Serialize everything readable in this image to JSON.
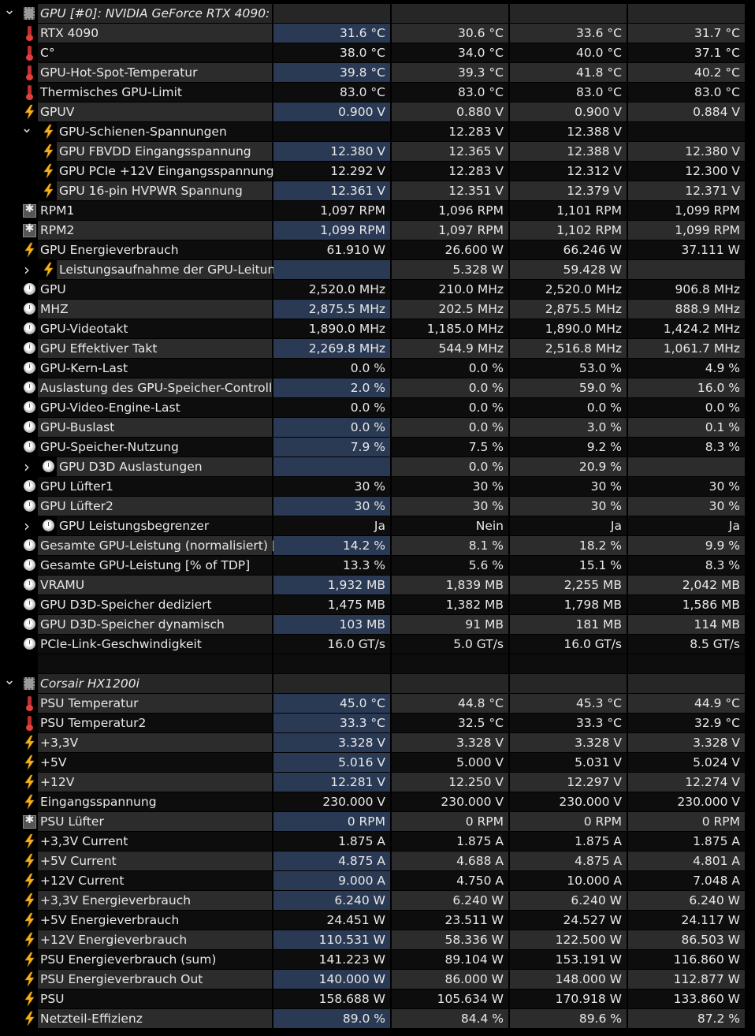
{
  "rows": [
    {
      "kind": "header",
      "expander": "open",
      "icon": "chip",
      "name": "GPU [#0]: NVIDIA GeForce RTX 4090:",
      "v": [
        "",
        "",
        "",
        ""
      ]
    },
    {
      "icon": "thermometer",
      "name": "RTX 4090",
      "v": [
        "31.6 °C",
        "30.6 °C",
        "33.6 °C",
        "31.7 °C"
      ]
    },
    {
      "icon": "thermometer",
      "name": "C°",
      "v": [
        "38.0 °C",
        "34.0 °C",
        "40.0 °C",
        "37.1 °C"
      ]
    },
    {
      "icon": "thermometer",
      "name": "GPU-Hot-Spot-Temperatur",
      "v": [
        "39.8 °C",
        "39.3 °C",
        "41.8 °C",
        "40.2 °C"
      ]
    },
    {
      "icon": "thermometer",
      "name": "Thermisches GPU-Limit",
      "v": [
        "83.0 °C",
        "83.0 °C",
        "83.0 °C",
        "83.0 °C"
      ]
    },
    {
      "icon": "bolt",
      "name": "GPUV",
      "v": [
        "0.900 V",
        "0.880 V",
        "0.900 V",
        "0.884 V"
      ]
    },
    {
      "sub": true,
      "expander": "open",
      "icon": "bolt",
      "name": "GPU-Schienen-Spannungen",
      "v": [
        "",
        "12.283 V",
        "12.388 V",
        ""
      ]
    },
    {
      "sub": true,
      "icon": "bolt",
      "name": "GPU FBVDD Eingangsspannung",
      "v": [
        "12.380 V",
        "12.365 V",
        "12.388 V",
        "12.380 V"
      ]
    },
    {
      "sub": true,
      "icon": "bolt",
      "name": "GPU PCIe +12V Eingangsspannung",
      "v": [
        "12.292 V",
        "12.283 V",
        "12.312 V",
        "12.300 V"
      ]
    },
    {
      "sub": true,
      "icon": "bolt",
      "name": "GPU 16-pin HVPWR Spannung",
      "v": [
        "12.361 V",
        "12.351 V",
        "12.379 V",
        "12.371 V"
      ]
    },
    {
      "icon": "fan",
      "name": "RPM1",
      "v": [
        "1,097 RPM",
        "1,096 RPM",
        "1,101 RPM",
        "1,099 RPM"
      ]
    },
    {
      "icon": "fan",
      "name": "RPM2",
      "v": [
        "1,099 RPM",
        "1,097 RPM",
        "1,102 RPM",
        "1,099 RPM"
      ]
    },
    {
      "icon": "bolt",
      "name": "GPU Energieverbrauch",
      "v": [
        "61.910 W",
        "26.600 W",
        "66.246 W",
        "37.111 W"
      ]
    },
    {
      "sub": true,
      "expander": "closed",
      "icon": "bolt",
      "name": "Leistungsaufnahme der GPU-Leitun…",
      "v": [
        "",
        "5.328 W",
        "59.428 W",
        ""
      ]
    },
    {
      "icon": "clock",
      "name": "GPU",
      "v": [
        "2,520.0 MHz",
        "210.0 MHz",
        "2,520.0 MHz",
        "906.8 MHz"
      ]
    },
    {
      "icon": "clock",
      "name": "MHZ",
      "v": [
        "2,875.5 MHz",
        "202.5 MHz",
        "2,875.5 MHz",
        "888.9 MHz"
      ]
    },
    {
      "icon": "clock",
      "name": "GPU-Videotakt",
      "v": [
        "1,890.0 MHz",
        "1,185.0 MHz",
        "1,890.0 MHz",
        "1,424.2 MHz"
      ]
    },
    {
      "icon": "clock",
      "name": "GPU Effektiver Takt",
      "v": [
        "2,269.8 MHz",
        "544.9 MHz",
        "2,516.8 MHz",
        "1,061.7 MHz"
      ]
    },
    {
      "icon": "clock",
      "name": "GPU-Kern-Last",
      "v": [
        "0.0 %",
        "0.0 %",
        "53.0 %",
        "4.9 %"
      ]
    },
    {
      "icon": "clock",
      "name": "Auslastung des GPU-Speicher-Controll…",
      "v": [
        "2.0 %",
        "0.0 %",
        "59.0 %",
        "16.0 %"
      ]
    },
    {
      "icon": "clock",
      "name": "GPU-Video-Engine-Last",
      "v": [
        "0.0 %",
        "0.0 %",
        "0.0 %",
        "0.0 %"
      ]
    },
    {
      "icon": "clock",
      "name": "GPU-Buslast",
      "v": [
        "0.0 %",
        "0.0 %",
        "3.0 %",
        "0.1 %"
      ]
    },
    {
      "icon": "clock",
      "name": "GPU-Speicher-Nutzung",
      "v": [
        "7.9 %",
        "7.5 %",
        "9.2 %",
        "8.3 %"
      ]
    },
    {
      "sub": true,
      "expander": "closed",
      "icon": "clock",
      "name": "GPU D3D Auslastungen",
      "v": [
        "",
        "0.0 %",
        "20.9 %",
        ""
      ]
    },
    {
      "icon": "clock",
      "name": "GPU Lüfter1",
      "v": [
        "30 %",
        "30 %",
        "30 %",
        "30 %"
      ]
    },
    {
      "icon": "clock",
      "name": "GPU Lüfter2",
      "v": [
        "30 %",
        "30 %",
        "30 %",
        "30 %"
      ]
    },
    {
      "sub": true,
      "expander": "closed",
      "icon": "clock",
      "name": "GPU Leistungsbegrenzer",
      "v": [
        "Ja",
        "Nein",
        "Ja",
        "Ja"
      ]
    },
    {
      "icon": "clock",
      "name": "Gesamte GPU-Leistung (normalisiert) […",
      "v": [
        "14.2 %",
        "8.1 %",
        "18.2 %",
        "9.9 %"
      ]
    },
    {
      "icon": "clock",
      "name": "Gesamte GPU-Leistung [% of TDP]",
      "v": [
        "13.3 %",
        "5.6 %",
        "15.1 %",
        "8.3 %"
      ]
    },
    {
      "icon": "clock",
      "name": "VRAMU",
      "v": [
        "1,932 MB",
        "1,839 MB",
        "2,255 MB",
        "2,042 MB"
      ]
    },
    {
      "icon": "clock",
      "name": "GPU D3D-Speicher dediziert",
      "v": [
        "1,475 MB",
        "1,382 MB",
        "1,798 MB",
        "1,586 MB"
      ]
    },
    {
      "icon": "clock",
      "name": "GPU D3D-Speicher dynamisch",
      "v": [
        "103 MB",
        "91 MB",
        "181 MB",
        "114 MB"
      ]
    },
    {
      "icon": "clock",
      "name": "PCIe-Link-Geschwindigkeit",
      "v": [
        "16.0 GT/s",
        "5.0 GT/s",
        "16.0 GT/s",
        "8.5 GT/s"
      ]
    },
    {
      "kind": "blank",
      "name": "",
      "v": [
        "",
        "",
        "",
        ""
      ]
    },
    {
      "kind": "header",
      "expander": "open",
      "icon": "chip",
      "name": "Corsair HX1200i",
      "v": [
        "",
        "",
        "",
        ""
      ]
    },
    {
      "icon": "thermometer",
      "name": "PSU Temperatur",
      "v": [
        "45.0 °C",
        "44.8 °C",
        "45.3 °C",
        "44.9 °C"
      ]
    },
    {
      "icon": "thermometer",
      "name": "PSU Temperatur2",
      "v": [
        "33.3 °C",
        "32.5 °C",
        "33.3 °C",
        "32.9 °C"
      ]
    },
    {
      "icon": "bolt",
      "name": "+3,3V",
      "v": [
        "3.328 V",
        "3.328 V",
        "3.328 V",
        "3.328 V"
      ]
    },
    {
      "icon": "bolt",
      "name": "+5V",
      "v": [
        "5.016 V",
        "5.000 V",
        "5.031 V",
        "5.024 V"
      ]
    },
    {
      "icon": "bolt",
      "name": "+12V",
      "v": [
        "12.281 V",
        "12.250 V",
        "12.297 V",
        "12.274 V"
      ]
    },
    {
      "icon": "bolt",
      "name": "Eingangsspannung",
      "v": [
        "230.000 V",
        "230.000 V",
        "230.000 V",
        "230.000 V"
      ]
    },
    {
      "icon": "fan",
      "name": "PSU Lüfter",
      "v": [
        "0 RPM",
        "0 RPM",
        "0 RPM",
        "0 RPM"
      ]
    },
    {
      "icon": "bolt",
      "name": "+3,3V Current",
      "v": [
        "1.875 A",
        "1.875 A",
        "1.875 A",
        "1.875 A"
      ]
    },
    {
      "icon": "bolt",
      "name": "+5V Current",
      "v": [
        "4.875 A",
        "4.688 A",
        "4.875 A",
        "4.801 A"
      ]
    },
    {
      "icon": "bolt",
      "name": "+12V Current",
      "v": [
        "9.000 A",
        "4.750 A",
        "10.000 A",
        "7.048 A"
      ]
    },
    {
      "icon": "bolt",
      "name": "+3,3V Energieverbrauch",
      "v": [
        "6.240 W",
        "6.240 W",
        "6.240 W",
        "6.240 W"
      ]
    },
    {
      "icon": "bolt",
      "name": "+5V Energieverbrauch",
      "v": [
        "24.451 W",
        "23.511 W",
        "24.527 W",
        "24.117 W"
      ]
    },
    {
      "icon": "bolt",
      "name": "+12V Energieverbrauch",
      "v": [
        "110.531 W",
        "58.336 W",
        "122.500 W",
        "86.503 W"
      ]
    },
    {
      "icon": "bolt",
      "name": "PSU Energieverbrauch (sum)",
      "v": [
        "141.223 W",
        "89.104 W",
        "153.191 W",
        "116.860 W"
      ]
    },
    {
      "icon": "bolt",
      "name": "PSU Energieverbrauch Out",
      "v": [
        "140.000 W",
        "86.000 W",
        "148.000 W",
        "112.877 W"
      ]
    },
    {
      "icon": "bolt",
      "name": "PSU",
      "v": [
        "158.688 W",
        "105.634 W",
        "170.918 W",
        "133.860 W"
      ]
    },
    {
      "icon": "bolt",
      "name": "Netzteil-Effizienz",
      "v": [
        "89.0 %",
        "84.4 %",
        "89.6 %",
        "87.2 %"
      ]
    }
  ]
}
